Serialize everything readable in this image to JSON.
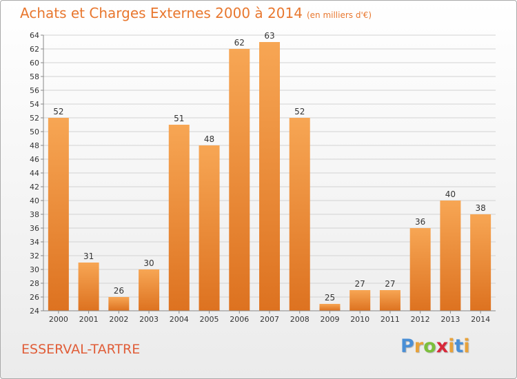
{
  "header": {
    "title": "Achats et Charges Externes 2000 à 2014",
    "subtitle": "(en milliers d'€)"
  },
  "footer": {
    "commune": "ESSERVAL-TARTRE",
    "brand": {
      "letters": [
        "P",
        "r",
        "o",
        "x",
        "i",
        "t",
        "i"
      ],
      "colors": [
        "#4a8fd6",
        "#e8a23a",
        "#7cbf3c",
        "#d8283a",
        "#e8a23a",
        "#4a8fd6",
        "#e8a23a"
      ]
    }
  },
  "chart_data": {
    "type": "bar",
    "title": "Achats et Charges Externes 2000 à 2014",
    "subtitle": "(en milliers d'€)",
    "categories": [
      "2000",
      "2001",
      "2002",
      "2003",
      "2004",
      "2005",
      "2006",
      "2007",
      "2008",
      "2009",
      "2010",
      "2011",
      "2012",
      "2013",
      "2014"
    ],
    "values": [
      52,
      31,
      26,
      30,
      51,
      48,
      62,
      63,
      52,
      25,
      27,
      27,
      36,
      40,
      38
    ],
    "ylim": [
      24,
      64
    ],
    "yticks": [
      24,
      26,
      28,
      30,
      32,
      34,
      36,
      38,
      40,
      42,
      44,
      46,
      48,
      50,
      52,
      54,
      56,
      58,
      60,
      62,
      64
    ],
    "grid": true,
    "bar_color": "#e8802f",
    "xlabel": "",
    "ylabel": ""
  }
}
